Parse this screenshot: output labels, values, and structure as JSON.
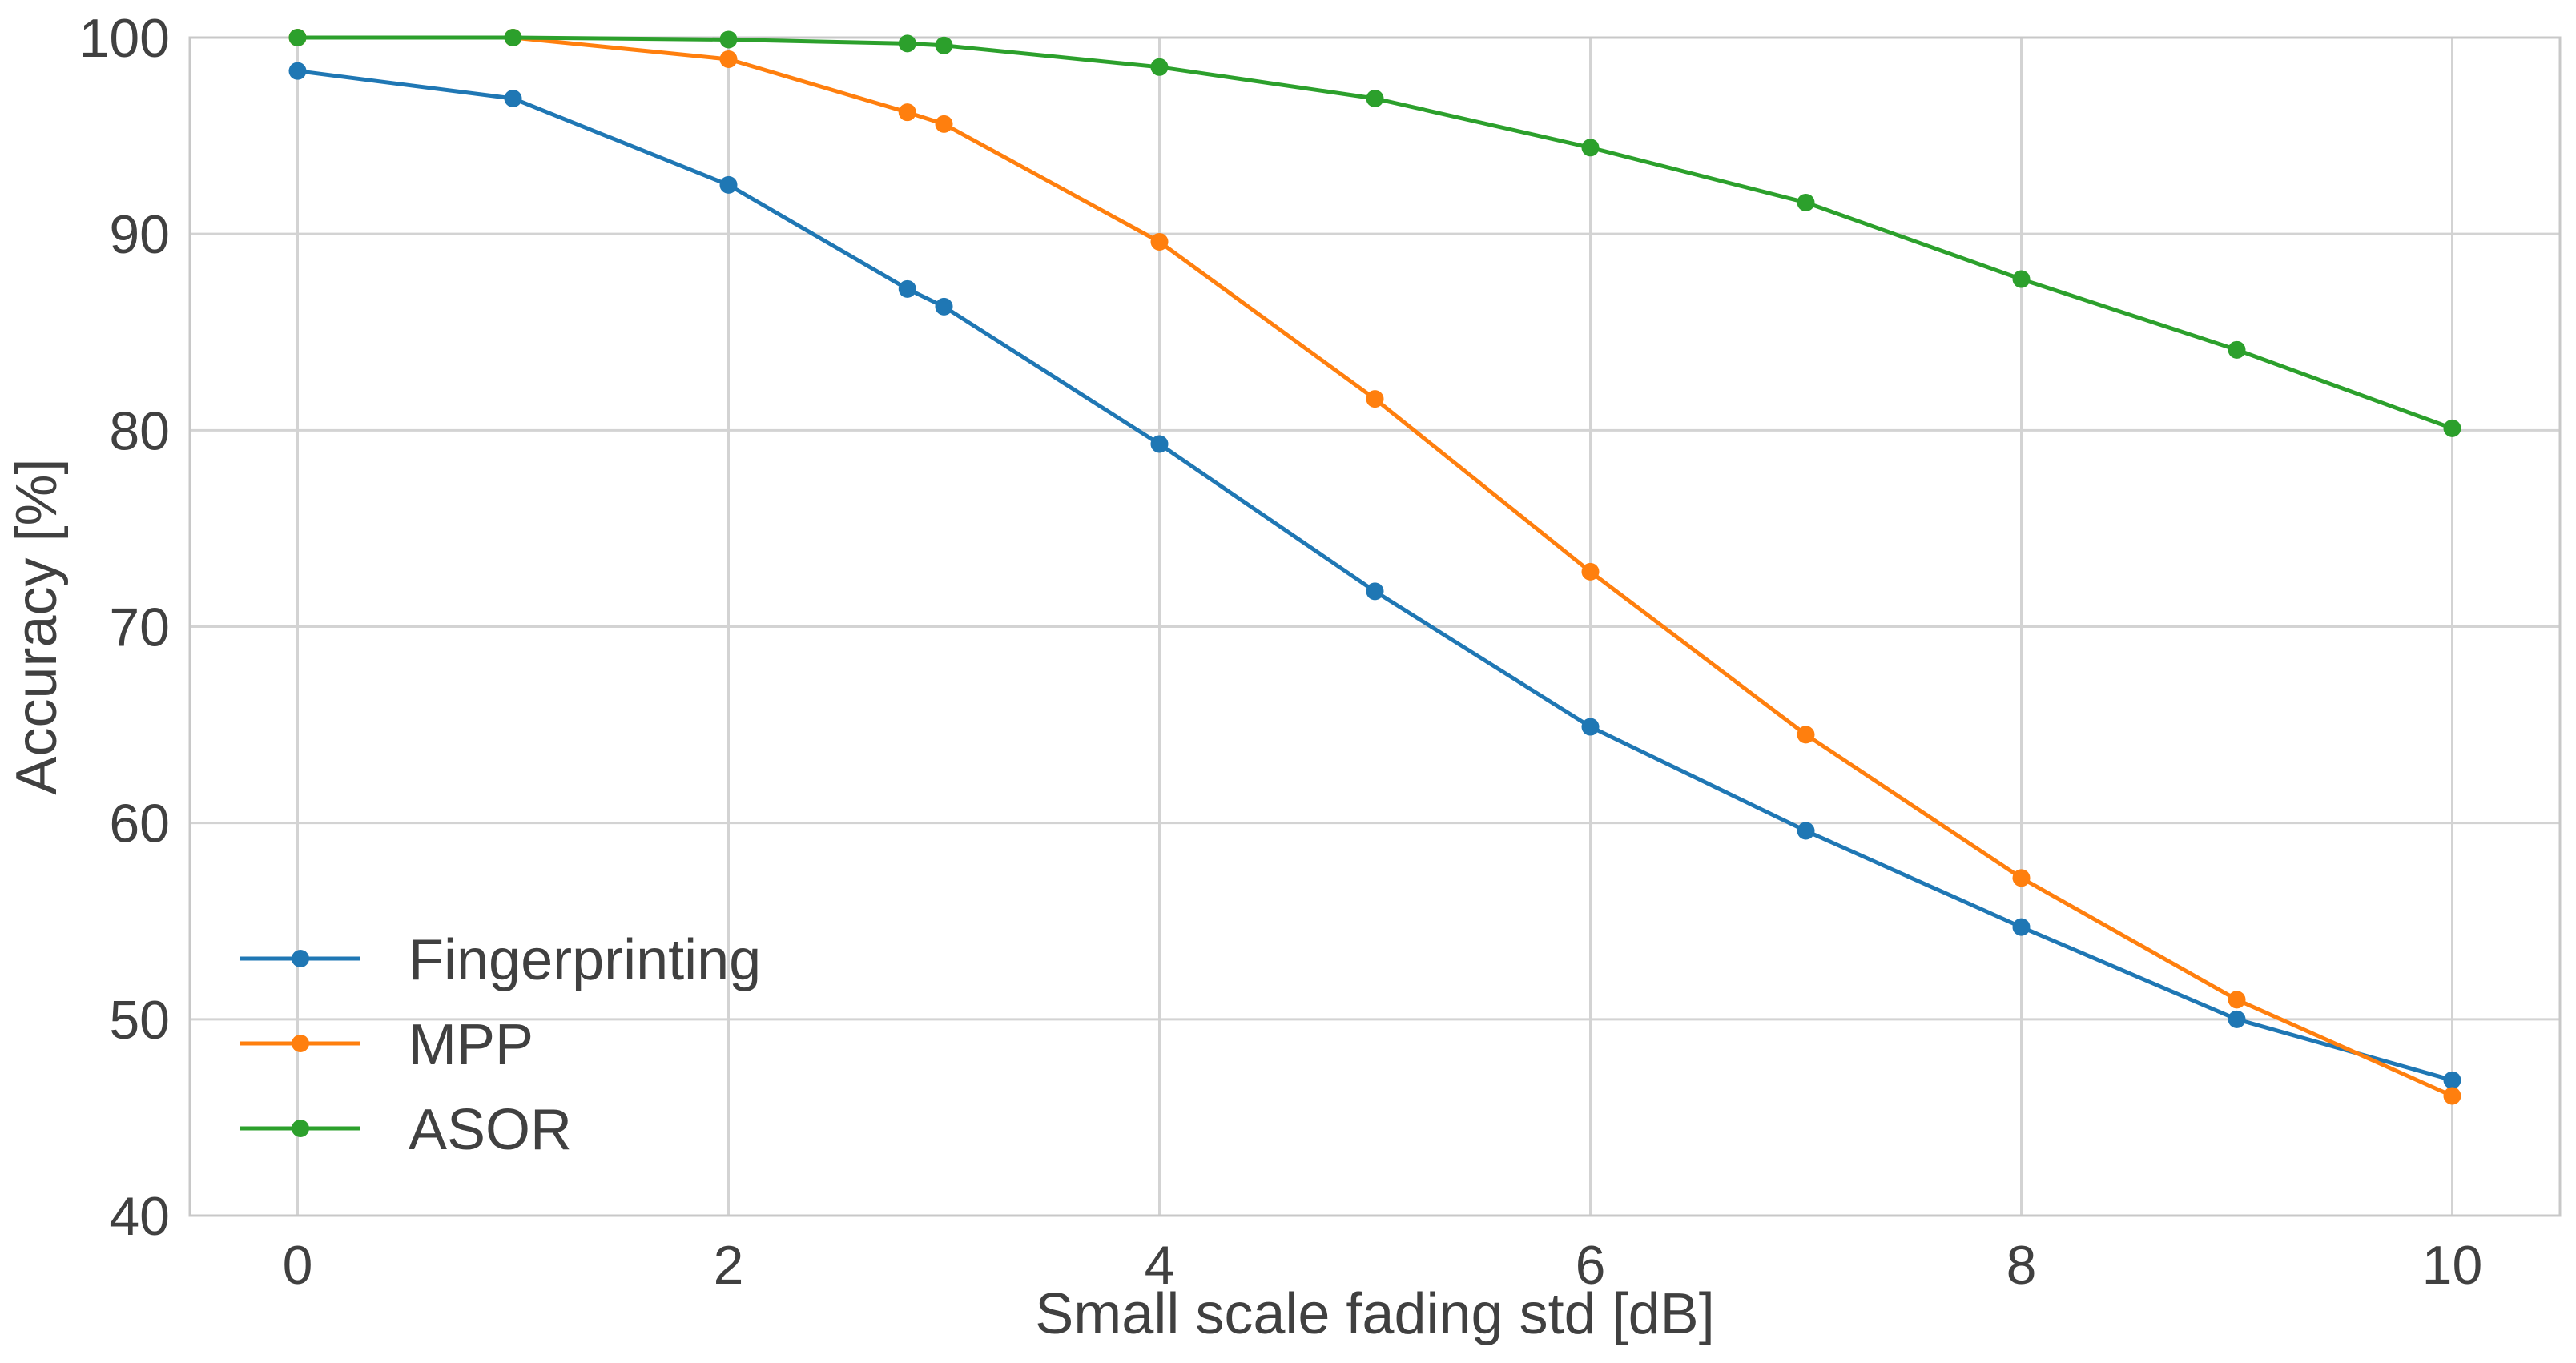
{
  "chart_data": {
    "type": "line",
    "title": "",
    "xlabel": "Small scale fading std [dB]",
    "ylabel": "Accuracy [%]",
    "xlim": [
      -0.5,
      10.5
    ],
    "ylim": [
      40,
      100
    ],
    "xticks": [
      0,
      2,
      4,
      6,
      8,
      10
    ],
    "yticks": [
      40,
      50,
      60,
      70,
      80,
      90,
      100
    ],
    "x": [
      0,
      1,
      2,
      2.83,
      3,
      4,
      5,
      6,
      7,
      8,
      9,
      10
    ],
    "grid": true,
    "legend_position": "lower-left",
    "series": [
      {
        "name": "Fingerprinting",
        "color": "#1f77b4",
        "values": [
          98.3,
          96.9,
          92.5,
          87.2,
          86.3,
          79.3,
          71.8,
          64.9,
          59.6,
          54.7,
          50.0,
          46.9
        ]
      },
      {
        "name": "MPP",
        "color": "#ff7f0e",
        "values": [
          100.0,
          100.0,
          98.9,
          96.2,
          95.6,
          89.6,
          81.6,
          72.8,
          64.5,
          57.2,
          51.0,
          46.1
        ]
      },
      {
        "name": "ASOR",
        "color": "#2ca02c",
        "values": [
          100.0,
          100.0,
          99.9,
          99.7,
          99.6,
          98.5,
          96.9,
          94.4,
          91.6,
          87.7,
          84.1,
          80.1
        ]
      }
    ]
  }
}
